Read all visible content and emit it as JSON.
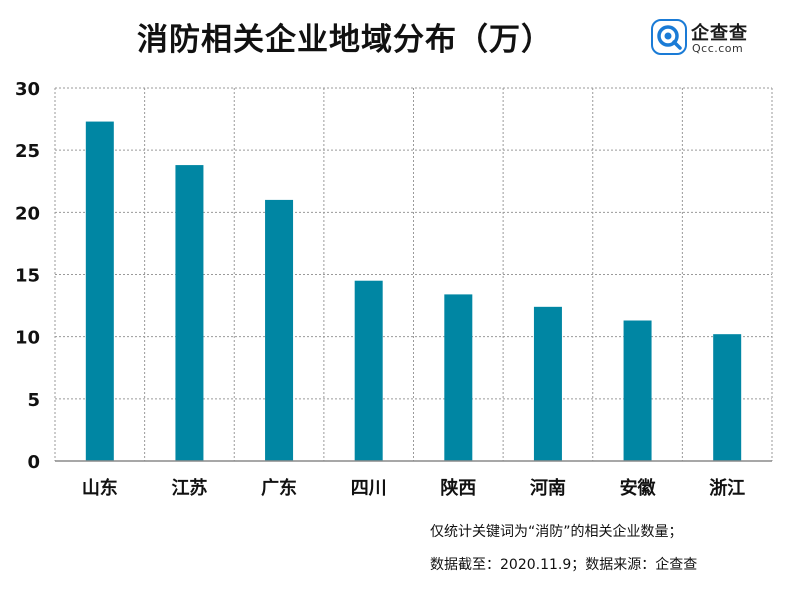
{
  "title": "消防相关企业地域分布（万）",
  "logo": {
    "name": "企查查",
    "domain": "Qcc.com",
    "color": "#1a7bd6"
  },
  "notes": {
    "line1": "仅统计关键词为“消防”的相关企业数量；",
    "line2": "数据截至：2020.11.9；数据来源：企查查"
  },
  "chart_data": {
    "type": "bar",
    "title": "消防相关企业地域分布（万）",
    "categories": [
      "山东",
      "江苏",
      "广东",
      "四川",
      "陕西",
      "河南",
      "安徽",
      "浙江"
    ],
    "values": [
      27.3,
      23.8,
      21.0,
      14.5,
      13.4,
      12.4,
      11.3,
      10.2
    ],
    "ylim": [
      0,
      30
    ],
    "yticks": [
      0,
      5,
      10,
      15,
      20,
      25,
      30
    ],
    "grid": true,
    "bar_color": "#0086a3",
    "xlabel": "",
    "ylabel": ""
  }
}
